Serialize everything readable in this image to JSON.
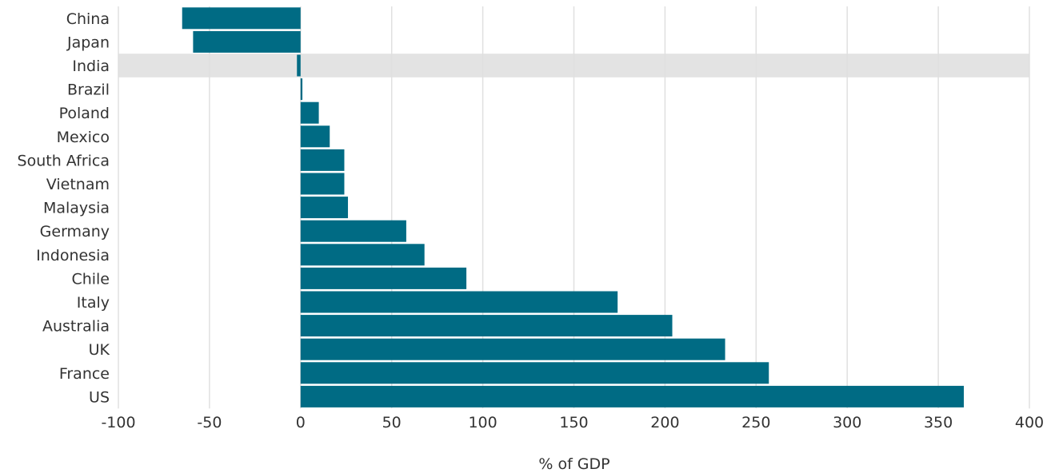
{
  "chart_data": {
    "type": "bar",
    "orientation": "horizontal",
    "categories": [
      "China",
      "Japan",
      "India",
      "Brazil",
      "Poland",
      "Mexico",
      "South Africa",
      "Vietnam",
      "Malaysia",
      "Germany",
      "Indonesia",
      "Chile",
      "Italy",
      "Australia",
      "UK",
      "France",
      "US"
    ],
    "values": [
      -65,
      -59,
      -2,
      1,
      10,
      16,
      24,
      24,
      26,
      58,
      68,
      91,
      174,
      204,
      233,
      257,
      364
    ],
    "highlight": "India",
    "xlabel": "% of GDP",
    "ylabel": "",
    "xlim": [
      -100,
      400
    ],
    "xticks": [
      "-100",
      "-50",
      "0",
      "50",
      "100",
      "150",
      "200",
      "250",
      "300",
      "350",
      "400"
    ],
    "grid": "vertical",
    "colors": {
      "bar": "#006b84",
      "highlight_band": "#e3e3e3",
      "grid": "#e0e0e0",
      "text": "#333333"
    }
  }
}
